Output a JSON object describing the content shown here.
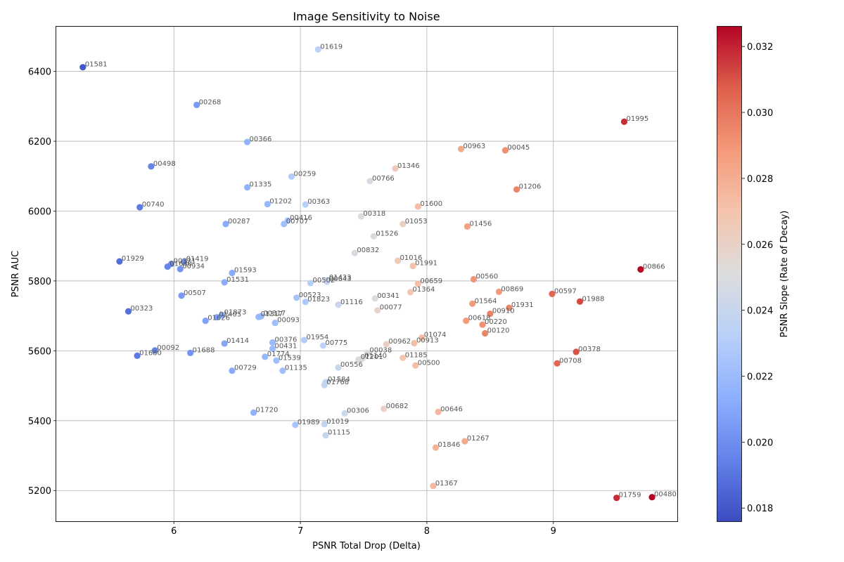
{
  "chart_data": {
    "type": "scatter",
    "title": "Image Sensitivity to Noise",
    "xlabel": "PSNR Total Drop (Delta)",
    "ylabel": "PSNR AUC",
    "xlim": [
      5.07,
      9.98
    ],
    "ylim": [
      5112,
      6528
    ],
    "x_ticks": [
      6,
      7,
      8,
      9
    ],
    "y_ticks": [
      5200,
      5400,
      5600,
      5800,
      6000,
      6200,
      6400
    ],
    "grid": true,
    "colorbar": {
      "label": "PSNR Slope (Rate of Decay)",
      "range": [
        0.0176,
        0.0326
      ],
      "ticks": [
        0.018,
        0.02,
        0.022,
        0.024,
        0.026,
        0.028,
        0.03,
        0.032
      ],
      "colormap": "coolwarm"
    },
    "points": [
      {
        "id": "01581",
        "x": 5.28,
        "y": 6412,
        "c": 0.018
      },
      {
        "id": "01619",
        "x": 7.14,
        "y": 6463,
        "c": 0.0235
      },
      {
        "id": "00268",
        "x": 6.18,
        "y": 6304,
        "c": 0.0205
      },
      {
        "id": "01995",
        "x": 9.56,
        "y": 6256,
        "c": 0.0318
      },
      {
        "id": "00366",
        "x": 6.58,
        "y": 6198,
        "c": 0.0215
      },
      {
        "id": "00963",
        "x": 8.27,
        "y": 6178,
        "c": 0.0282
      },
      {
        "id": "00045",
        "x": 8.62,
        "y": 6174,
        "c": 0.0292
      },
      {
        "id": "00498",
        "x": 5.82,
        "y": 6128,
        "c": 0.0195
      },
      {
        "id": "01346",
        "x": 7.75,
        "y": 6122,
        "c": 0.0265
      },
      {
        "id": "00259",
        "x": 6.93,
        "y": 6099,
        "c": 0.023
      },
      {
        "id": "00766",
        "x": 7.55,
        "y": 6086,
        "c": 0.0248
      },
      {
        "id": "01335",
        "x": 6.58,
        "y": 6068,
        "c": 0.0215
      },
      {
        "id": "01206",
        "x": 8.71,
        "y": 6062,
        "c": 0.0295
      },
      {
        "id": "01202",
        "x": 6.74,
        "y": 6020,
        "c": 0.0218
      },
      {
        "id": "00363",
        "x": 7.04,
        "y": 6019,
        "c": 0.0232
      },
      {
        "id": "00740",
        "x": 5.73,
        "y": 6011,
        "c": 0.0192
      },
      {
        "id": "01600",
        "x": 7.93,
        "y": 6013,
        "c": 0.0272
      },
      {
        "id": "00318",
        "x": 7.48,
        "y": 5985,
        "c": 0.025
      },
      {
        "id": "00416",
        "x": 6.9,
        "y": 5973,
        "c": 0.0225
      },
      {
        "id": "00287",
        "x": 6.41,
        "y": 5963,
        "c": 0.0212
      },
      {
        "id": "00707",
        "x": 6.87,
        "y": 5963,
        "c": 0.0222
      },
      {
        "id": "01053",
        "x": 7.81,
        "y": 5963,
        "c": 0.0262
      },
      {
        "id": "01456",
        "x": 8.32,
        "y": 5956,
        "c": 0.0285
      },
      {
        "id": "01526",
        "x": 7.58,
        "y": 5928,
        "c": 0.0254
      },
      {
        "id": "00832",
        "x": 7.43,
        "y": 5880,
        "c": 0.0248
      },
      {
        "id": "01929",
        "x": 5.57,
        "y": 5856,
        "c": 0.0188
      },
      {
        "id": "01016",
        "x": 7.77,
        "y": 5858,
        "c": 0.0266
      },
      {
        "id": "01991",
        "x": 7.89,
        "y": 5843,
        "c": 0.027
      },
      {
        "id": "00866",
        "x": 9.69,
        "y": 5833,
        "c": 0.0325
      },
      {
        "id": "01419",
        "x": 6.08,
        "y": 5855,
        "c": 0.0202
      },
      {
        "id": "00321",
        "x": 5.98,
        "y": 5849,
        "c": 0.0198
      },
      {
        "id": "00934",
        "x": 6.05,
        "y": 5834,
        "c": 0.0202
      },
      {
        "id": "01630",
        "x": 5.95,
        "y": 5841,
        "c": 0.0196
      },
      {
        "id": "01593",
        "x": 6.46,
        "y": 5823,
        "c": 0.0212
      },
      {
        "id": "00560",
        "x": 8.37,
        "y": 5805,
        "c": 0.029
      },
      {
        "id": "01433",
        "x": 7.21,
        "y": 5802,
        "c": 0.0238
      },
      {
        "id": "00643",
        "x": 7.21,
        "y": 5798,
        "c": 0.0238
      },
      {
        "id": "00502",
        "x": 7.08,
        "y": 5794,
        "c": 0.0232
      },
      {
        "id": "01531",
        "x": 6.4,
        "y": 5796,
        "c": 0.0212
      },
      {
        "id": "00659",
        "x": 7.93,
        "y": 5792,
        "c": 0.0272
      },
      {
        "id": "00869",
        "x": 8.57,
        "y": 5769,
        "c": 0.0288
      },
      {
        "id": "01364",
        "x": 7.87,
        "y": 5768,
        "c": 0.0268
      },
      {
        "id": "00597",
        "x": 8.99,
        "y": 5763,
        "c": 0.0305
      },
      {
        "id": "00507",
        "x": 6.06,
        "y": 5758,
        "c": 0.0205
      },
      {
        "id": "00523",
        "x": 6.97,
        "y": 5752,
        "c": 0.0225
      },
      {
        "id": "00341",
        "x": 7.59,
        "y": 5750,
        "c": 0.0252
      },
      {
        "id": "01988",
        "x": 9.21,
        "y": 5741,
        "c": 0.0312
      },
      {
        "id": "01823",
        "x": 7.04,
        "y": 5740,
        "c": 0.0228
      },
      {
        "id": "01564",
        "x": 8.36,
        "y": 5735,
        "c": 0.0288
      },
      {
        "id": "01116",
        "x": 7.3,
        "y": 5732,
        "c": 0.024
      },
      {
        "id": "01931",
        "x": 8.65,
        "y": 5723,
        "c": 0.0295
      },
      {
        "id": "00077",
        "x": 7.61,
        "y": 5716,
        "c": 0.0258
      },
      {
        "id": "00323",
        "x": 5.64,
        "y": 5713,
        "c": 0.0188
      },
      {
        "id": "00910",
        "x": 8.5,
        "y": 5706,
        "c": 0.0296
      },
      {
        "id": "01873",
        "x": 6.38,
        "y": 5702,
        "c": 0.021
      },
      {
        "id": "01405",
        "x": 6.34,
        "y": 5696,
        "c": 0.0208
      },
      {
        "id": "00317",
        "x": 6.69,
        "y": 5699,
        "c": 0.0218
      },
      {
        "id": "01317",
        "x": 6.67,
        "y": 5697,
        "c": 0.0218
      },
      {
        "id": "01626",
        "x": 6.25,
        "y": 5686,
        "c": 0.0208
      },
      {
        "id": "00093",
        "x": 6.8,
        "y": 5680,
        "c": 0.0222
      },
      {
        "id": "00618",
        "x": 8.31,
        "y": 5686,
        "c": 0.0288
      },
      {
        "id": "00220",
        "x": 8.44,
        "y": 5675,
        "c": 0.0292
      },
      {
        "id": "00120",
        "x": 8.46,
        "y": 5650,
        "c": 0.0295
      },
      {
        "id": "01074",
        "x": 7.96,
        "y": 5638,
        "c": 0.0272
      },
      {
        "id": "01954",
        "x": 7.03,
        "y": 5631,
        "c": 0.023
      },
      {
        "id": "00913",
        "x": 7.9,
        "y": 5622,
        "c": 0.0272
      },
      {
        "id": "00376",
        "x": 6.78,
        "y": 5624,
        "c": 0.022
      },
      {
        "id": "01414",
        "x": 6.4,
        "y": 5621,
        "c": 0.021
      },
      {
        "id": "00962",
        "x": 7.68,
        "y": 5619,
        "c": 0.0262
      },
      {
        "id": "00775",
        "x": 7.18,
        "y": 5615,
        "c": 0.0235
      },
      {
        "id": "00431",
        "x": 6.78,
        "y": 5606,
        "c": 0.022
      },
      {
        "id": "00092",
        "x": 5.85,
        "y": 5601,
        "c": 0.0195
      },
      {
        "id": "00378",
        "x": 9.18,
        "y": 5597,
        "c": 0.031
      },
      {
        "id": "01688",
        "x": 6.13,
        "y": 5594,
        "c": 0.0202
      },
      {
        "id": "00038",
        "x": 7.53,
        "y": 5594,
        "c": 0.0252
      },
      {
        "id": "01680",
        "x": 5.71,
        "y": 5586,
        "c": 0.0192
      },
      {
        "id": "01774",
        "x": 6.72,
        "y": 5583,
        "c": 0.0218
      },
      {
        "id": "01185",
        "x": 7.81,
        "y": 5580,
        "c": 0.0268
      },
      {
        "id": "01140",
        "x": 7.49,
        "y": 5578,
        "c": 0.025
      },
      {
        "id": "01201",
        "x": 7.46,
        "y": 5575,
        "c": 0.0248
      },
      {
        "id": "01539",
        "x": 6.81,
        "y": 5572,
        "c": 0.0222
      },
      {
        "id": "00708",
        "x": 9.03,
        "y": 5564,
        "c": 0.0305
      },
      {
        "id": "00500",
        "x": 7.91,
        "y": 5558,
        "c": 0.0272
      },
      {
        "id": "00556",
        "x": 7.3,
        "y": 5552,
        "c": 0.024
      },
      {
        "id": "00729",
        "x": 6.46,
        "y": 5543,
        "c": 0.0212
      },
      {
        "id": "01135",
        "x": 6.86,
        "y": 5543,
        "c": 0.0222
      },
      {
        "id": "01584",
        "x": 7.2,
        "y": 5510,
        "c": 0.0238
      },
      {
        "id": "01768",
        "x": 7.19,
        "y": 5502,
        "c": 0.0238
      },
      {
        "id": "00682",
        "x": 7.66,
        "y": 5434,
        "c": 0.026
      },
      {
        "id": "00646",
        "x": 8.09,
        "y": 5425,
        "c": 0.0275
      },
      {
        "id": "01720",
        "x": 6.63,
        "y": 5423,
        "c": 0.0215
      },
      {
        "id": "00306",
        "x": 7.35,
        "y": 5421,
        "c": 0.0242
      },
      {
        "id": "01989",
        "x": 6.96,
        "y": 5388,
        "c": 0.0225
      },
      {
        "id": "01019",
        "x": 7.19,
        "y": 5390,
        "c": 0.0238
      },
      {
        "id": "01115",
        "x": 7.2,
        "y": 5358,
        "c": 0.0238
      },
      {
        "id": "01267",
        "x": 8.3,
        "y": 5341,
        "c": 0.0282
      },
      {
        "id": "01846",
        "x": 8.07,
        "y": 5323,
        "c": 0.0278
      },
      {
        "id": "01367",
        "x": 8.05,
        "y": 5213,
        "c": 0.0275
      },
      {
        "id": "01759",
        "x": 9.5,
        "y": 5179,
        "c": 0.0318
      },
      {
        "id": "00480",
        "x": 9.78,
        "y": 5181,
        "c": 0.0326
      }
    ]
  }
}
